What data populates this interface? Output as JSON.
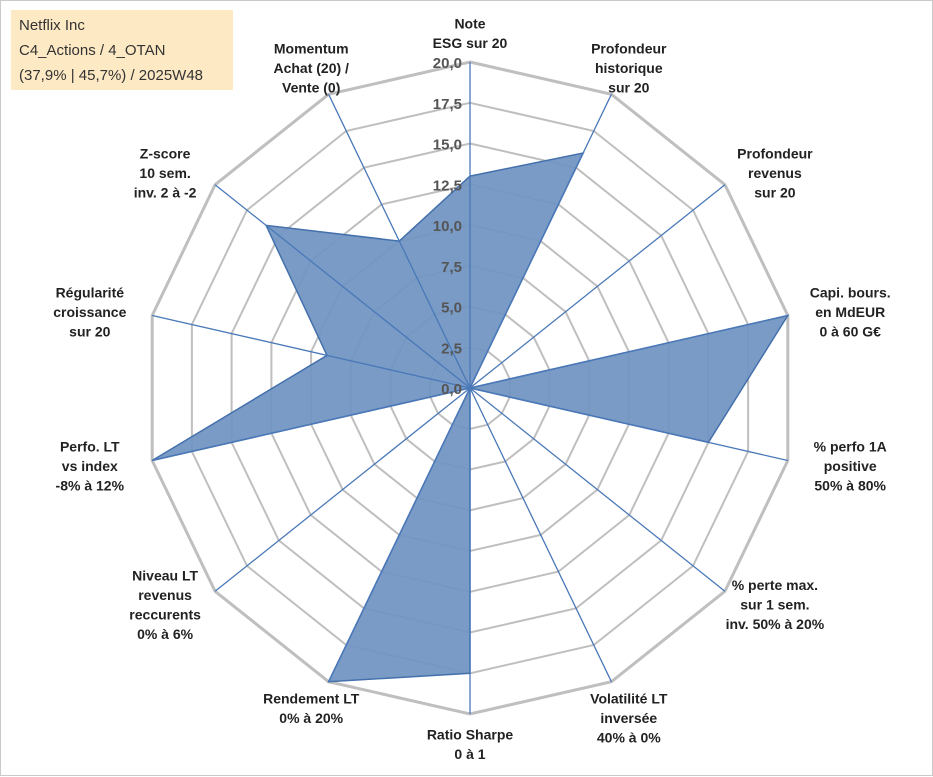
{
  "title_box": {
    "line1": "Netflix Inc",
    "line2": "C4_Actions / 4_OTAN",
    "line3": "(37,9% | 45,7%) / 2025W48"
  },
  "colors": {
    "fill": "#6f93c2",
    "stroke": "#4470ac",
    "axis": "#4a78b8",
    "grid": "#bfbfbf",
    "title_bg": "#fde9c4"
  },
  "chart_data": {
    "type": "radar",
    "title": "Netflix Inc",
    "r_min": 0,
    "r_max": 20,
    "tick_labels": [
      "0,0",
      "2,5",
      "5,0",
      "7,5",
      "10,0",
      "12,5",
      "15,0",
      "17,5",
      "20,0"
    ],
    "axes": [
      {
        "label": [
          "Note",
          "ESG sur 20"
        ],
        "value": 13
      },
      {
        "label": [
          "Profondeur",
          "historique",
          "sur 20"
        ],
        "value": 16
      },
      {
        "label": [
          "Profondeur",
          "revenus",
          "sur 20"
        ],
        "value": 0
      },
      {
        "label": [
          "Capi. bours.",
          "en MdEUR",
          "0 à 60 G€"
        ],
        "value": 20
      },
      {
        "label": [
          "% perfo 1A",
          "positive",
          "50% à 80%"
        ],
        "value": 15
      },
      {
        "label": [
          "% perte max.",
          "sur 1 sem.",
          "inv. 50% à 20%"
        ],
        "value": 0
      },
      {
        "label": [
          "Volatilité LT",
          "inversée",
          "40% à 0%"
        ],
        "value": 0
      },
      {
        "label": [
          "Ratio Sharpe",
          "0 à 1"
        ],
        "value": 17.5
      },
      {
        "label": [
          "Rendement LT",
          "0% à 20%"
        ],
        "value": 20
      },
      {
        "label": [
          "Niveau LT",
          "revenus",
          "reccurents",
          "0% à 6%"
        ],
        "value": 0
      },
      {
        "label": [
          "Perfo. LT",
          "vs index",
          "-8% à 12%"
        ],
        "value": 20
      },
      {
        "label": [
          "Régularité",
          "croissance",
          "sur 20"
        ],
        "value": 9
      },
      {
        "label": [
          "Z-score",
          "10 sem.",
          "inv. 2 à -2"
        ],
        "value": 16
      },
      {
        "label": [
          "Momentum",
          "Achat (20) /",
          "Vente (0)"
        ],
        "value": 10
      }
    ]
  }
}
